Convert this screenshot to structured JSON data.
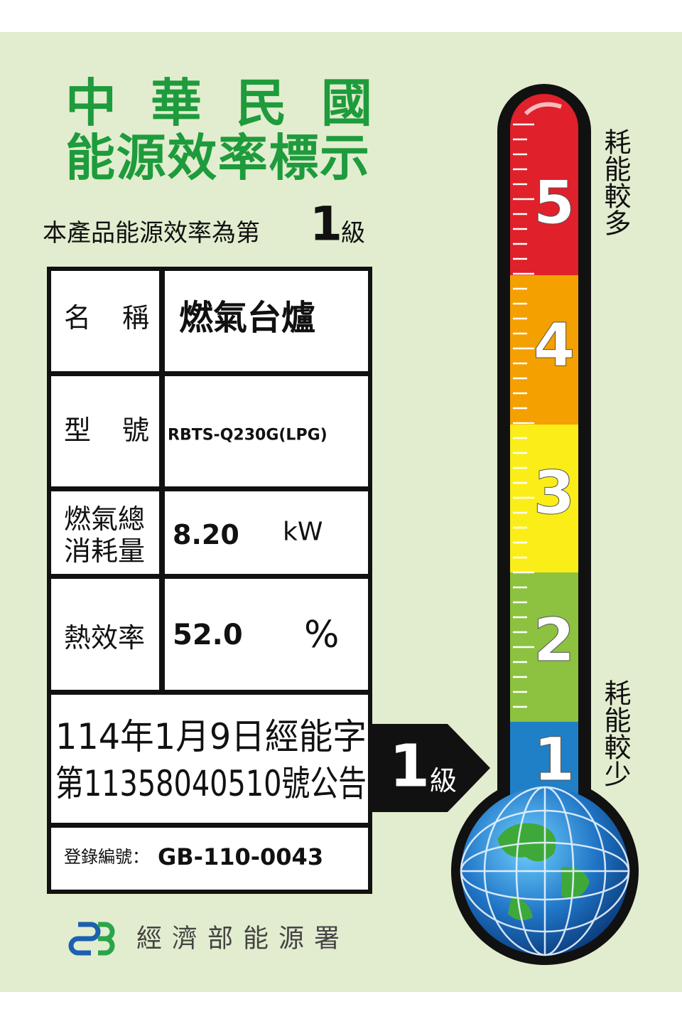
{
  "label": {
    "title": [
      "中華民國",
      "能源效率標示"
    ],
    "grade_line": {
      "prefix": "本產品能源效率為第",
      "grade": "1",
      "suffix": "級"
    },
    "table": {
      "rows": [
        {
          "label": [
            "名稱"
          ],
          "value": "燃氣台爐"
        },
        {
          "label": [
            "型號"
          ],
          "value": "RBTS-Q230G(LPG)"
        },
        {
          "label": [
            "燃氣總",
            "消耗量"
          ],
          "value": "8.20",
          "unit": "kW"
        },
        {
          "label": [
            "熱效率"
          ],
          "value": "52.0",
          "unit": "%"
        }
      ],
      "announcement": [
        "114年1月9日經能字",
        "第11358040510號公告"
      ],
      "registration": {
        "label": "登錄編號：",
        "value": "GB-110-0043"
      }
    },
    "arrow": {
      "grade": "1",
      "suffix": "級"
    },
    "thermometer": {
      "levels": [
        "5",
        "4",
        "3",
        "2",
        "1"
      ],
      "top_note": "耗能較多",
      "bottom_note": "耗能較少"
    },
    "footer": "經濟部能源署"
  }
}
